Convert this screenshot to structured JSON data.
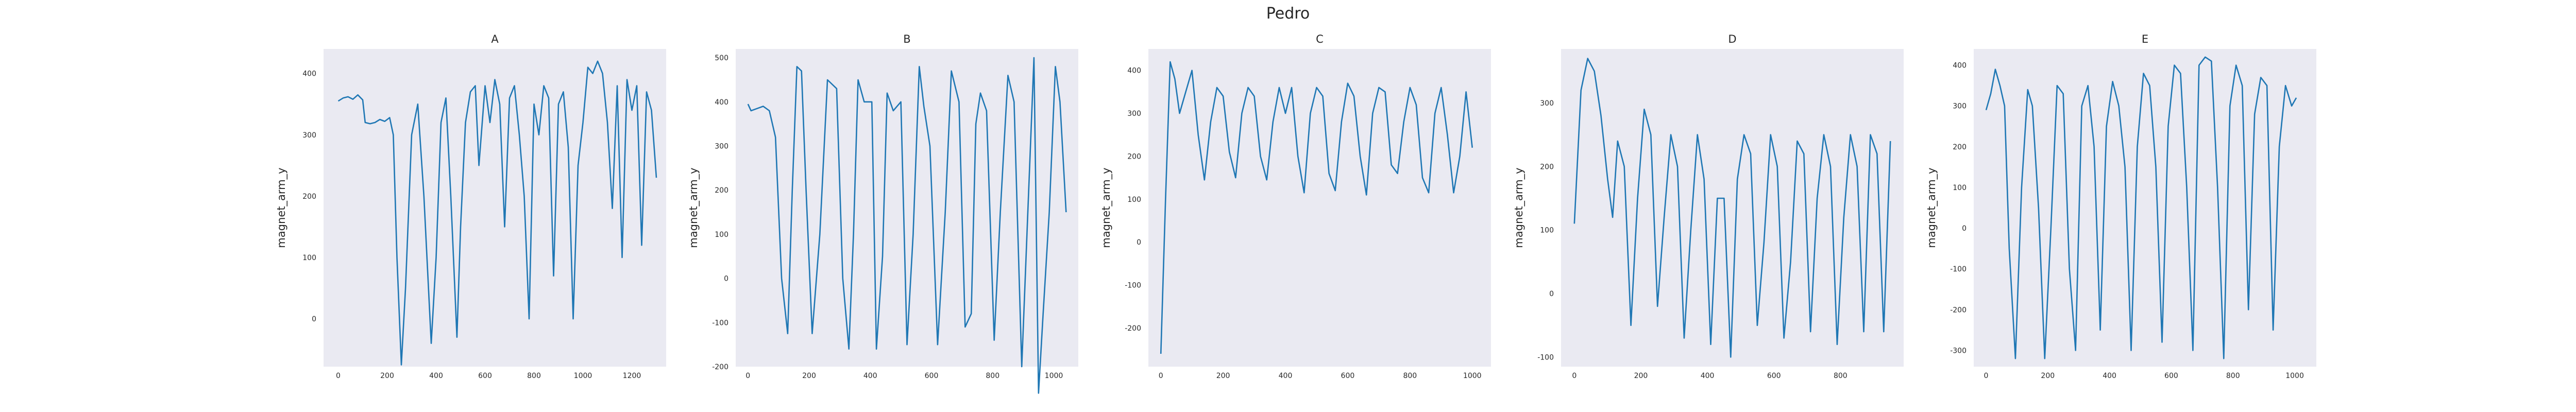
{
  "figure": {
    "title": "Pedro",
    "background": "#ffffff",
    "plot_background": "#eaeaf2",
    "line_color": "#1f77b4"
  },
  "chart_data": [
    {
      "type": "line",
      "title": "A",
      "ylabel": "magnet_arm_y",
      "xlabel": "",
      "xlim": [
        -60,
        1340
      ],
      "ylim": [
        -78,
        440
      ],
      "xticks": [
        0,
        200,
        400,
        600,
        800,
        1000,
        1200
      ],
      "yticks": [
        0,
        100,
        200,
        300,
        400
      ],
      "grid": false,
      "x": [
        0,
        20,
        40,
        60,
        80,
        100,
        110,
        130,
        150,
        170,
        190,
        210,
        225,
        240,
        258,
        275,
        300,
        325,
        350,
        380,
        400,
        420,
        440,
        460,
        485,
        500,
        520,
        540,
        560,
        575,
        600,
        620,
        640,
        660,
        680,
        700,
        720,
        740,
        760,
        780,
        800,
        820,
        840,
        860,
        880,
        900,
        920,
        940,
        960,
        980,
        1000,
        1020,
        1040,
        1060,
        1080,
        1100,
        1120,
        1140,
        1160,
        1180,
        1200,
        1220,
        1240,
        1260,
        1280,
        1300
      ],
      "y": [
        355,
        360,
        362,
        358,
        365,
        357,
        320,
        318,
        320,
        325,
        322,
        328,
        300,
        100,
        -75,
        50,
        300,
        350,
        200,
        -40,
        100,
        320,
        360,
        200,
        -30,
        150,
        320,
        370,
        380,
        250,
        380,
        320,
        390,
        350,
        150,
        360,
        380,
        300,
        200,
        0,
        350,
        300,
        380,
        360,
        70,
        350,
        370,
        280,
        0,
        250,
        320,
        410,
        400,
        420,
        400,
        320,
        180,
        380,
        100,
        390,
        340,
        380,
        120,
        370,
        340,
        230
      ]
    },
    {
      "type": "line",
      "title": "B",
      "ylabel": "magnet_arm_y",
      "xlabel": "",
      "xlim": [
        -40,
        1080
      ],
      "ylim": [
        -200,
        520
      ],
      "xticks": [
        0,
        200,
        400,
        600,
        800,
        1000
      ],
      "yticks": [
        -200,
        -100,
        0,
        100,
        200,
        300,
        400,
        500
      ],
      "grid": false,
      "x": [
        0,
        10,
        30,
        50,
        70,
        90,
        110,
        130,
        145,
        160,
        175,
        190,
        210,
        235,
        260,
        290,
        310,
        330,
        345,
        360,
        380,
        405,
        420,
        440,
        455,
        475,
        500,
        520,
        540,
        560,
        575,
        595,
        620,
        645,
        665,
        690,
        710,
        730,
        745,
        760,
        780,
        805,
        825,
        850,
        870,
        895,
        915,
        935,
        950,
        965,
        985,
        1005,
        1020,
        1040
      ],
      "y": [
        395,
        380,
        385,
        390,
        380,
        320,
        0,
        -125,
        200,
        480,
        470,
        200,
        -125,
        100,
        450,
        430,
        0,
        -160,
        100,
        450,
        400,
        400,
        -160,
        50,
        420,
        380,
        400,
        -150,
        100,
        480,
        390,
        300,
        -150,
        150,
        470,
        400,
        -110,
        -80,
        350,
        420,
        380,
        -140,
        150,
        460,
        400,
        -200,
        150,
        500,
        -260,
        -80,
        150,
        480,
        400,
        150
      ]
    },
    {
      "type": "line",
      "title": "C",
      "ylabel": "magnet_arm_y",
      "xlabel": "",
      "xlim": [
        -40,
        1060
      ],
      "ylim": [
        -290,
        450
      ],
      "xticks": [
        0,
        200,
        400,
        600,
        800,
        1000
      ],
      "yticks": [
        -200,
        -100,
        0,
        100,
        200,
        300,
        400
      ],
      "grid": false,
      "x": [
        0,
        15,
        30,
        45,
        60,
        80,
        100,
        120,
        140,
        160,
        180,
        200,
        220,
        240,
        260,
        280,
        300,
        320,
        340,
        360,
        380,
        400,
        420,
        440,
        460,
        480,
        500,
        520,
        540,
        560,
        580,
        600,
        620,
        640,
        660,
        680,
        700,
        720,
        740,
        760,
        780,
        800,
        820,
        840,
        860,
        880,
        900,
        920,
        940,
        960,
        980,
        1000
      ],
      "y": [
        -260,
        100,
        420,
        380,
        300,
        350,
        400,
        250,
        145,
        280,
        360,
        340,
        210,
        150,
        300,
        360,
        340,
        200,
        145,
        280,
        360,
        300,
        360,
        200,
        115,
        300,
        360,
        340,
        160,
        120,
        280,
        370,
        340,
        200,
        110,
        300,
        360,
        350,
        180,
        160,
        280,
        360,
        320,
        150,
        115,
        300,
        360,
        250,
        115,
        200,
        350,
        220
      ]
    },
    {
      "type": "line",
      "title": "D",
      "ylabel": "magnet_arm_y",
      "xlabel": "",
      "xlim": [
        -40,
        990
      ],
      "ylim": [
        -115,
        385
      ],
      "xticks": [
        0,
        200,
        400,
        600,
        800
      ],
      "yticks": [
        -100,
        0,
        100,
        200,
        300
      ],
      "grid": false,
      "x": [
        0,
        20,
        40,
        60,
        80,
        100,
        115,
        130,
        150,
        170,
        190,
        210,
        230,
        250,
        270,
        290,
        310,
        330,
        350,
        370,
        390,
        410,
        430,
        450,
        470,
        490,
        510,
        530,
        550,
        570,
        590,
        610,
        630,
        650,
        670,
        690,
        710,
        730,
        750,
        770,
        790,
        810,
        830,
        850,
        870,
        890,
        910,
        930,
        950
      ],
      "y": [
        110,
        320,
        370,
        350,
        280,
        180,
        120,
        240,
        200,
        -50,
        150,
        290,
        250,
        -20,
        120,
        250,
        200,
        -70,
        100,
        250,
        180,
        -80,
        150,
        150,
        -100,
        180,
        250,
        220,
        -50,
        80,
        250,
        200,
        -70,
        50,
        240,
        220,
        -60,
        150,
        250,
        200,
        -80,
        120,
        250,
        200,
        -60,
        250,
        220,
        -60,
        240
      ]
    },
    {
      "type": "line",
      "title": "E",
      "ylabel": "magnet_arm_y",
      "xlabel": "",
      "xlim": [
        -40,
        1070
      ],
      "ylim": [
        -340,
        440
      ],
      "xticks": [
        0,
        200,
        400,
        600,
        800,
        1000
      ],
      "yticks": [
        -300,
        -200,
        -100,
        0,
        100,
        200,
        300,
        400
      ],
      "grid": false,
      "x": [
        0,
        15,
        30,
        45,
        60,
        75,
        95,
        115,
        135,
        150,
        170,
        190,
        210,
        230,
        250,
        270,
        290,
        310,
        330,
        350,
        370,
        390,
        410,
        430,
        450,
        470,
        490,
        510,
        530,
        550,
        570,
        590,
        610,
        630,
        650,
        670,
        690,
        710,
        730,
        750,
        770,
        790,
        810,
        830,
        850,
        870,
        890,
        910,
        930,
        950,
        970,
        990,
        1005
      ],
      "y": [
        290,
        330,
        390,
        350,
        300,
        -50,
        -320,
        100,
        340,
        300,
        50,
        -320,
        0,
        350,
        330,
        -100,
        -300,
        300,
        350,
        200,
        -250,
        250,
        360,
        300,
        150,
        -300,
        200,
        380,
        350,
        150,
        -280,
        250,
        400,
        380,
        100,
        -300,
        400,
        420,
        410,
        100,
        -320,
        300,
        400,
        350,
        -200,
        280,
        370,
        350,
        -250,
        200,
        350,
        300,
        320
      ]
    }
  ]
}
